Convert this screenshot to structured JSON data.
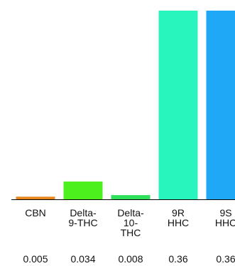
{
  "chart_data": {
    "type": "bar",
    "categories": [
      "CBN",
      "Delta-9-THC",
      "Delta-10-THC",
      "9R HHC",
      "9S HHC"
    ],
    "category_label_lines": [
      [
        "CBN"
      ],
      [
        "Delta-",
        "9-THC"
      ],
      [
        "Delta-",
        "10-",
        "THC"
      ],
      [
        "9R",
        "HHC"
      ],
      [
        "9S",
        "HHC"
      ]
    ],
    "values": [
      0.005,
      0.034,
      0.008,
      0.36,
      0.36
    ],
    "value_labels": [
      "0.005",
      "0.034",
      "0.008",
      "0.36",
      "0.36"
    ],
    "colors": [
      "#e8851a",
      "#4cf01c",
      "#2ee05a",
      "#27f5bd",
      "#1ea8f5"
    ],
    "ylim": [
      0,
      0.36
    ],
    "grid": false,
    "legend": "none",
    "title": "",
    "xlabel": "",
    "ylabel": ""
  }
}
